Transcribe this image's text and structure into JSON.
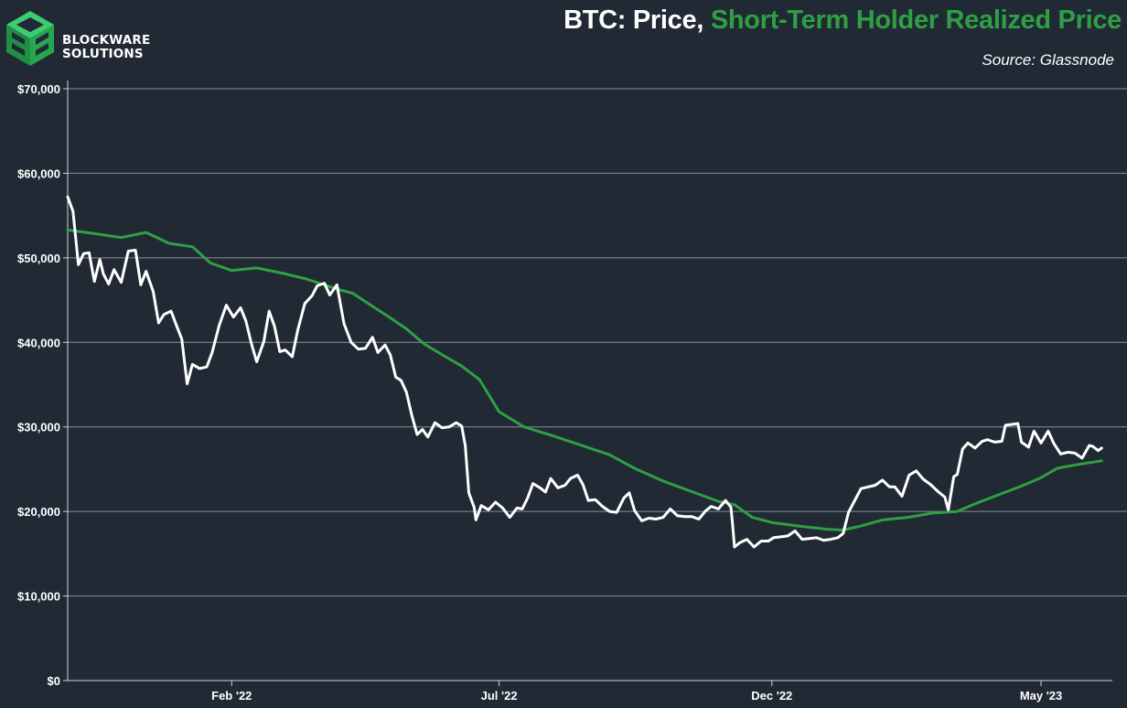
{
  "logo": {
    "line1": "BLOCKWARE",
    "line2": "SOLUTIONS"
  },
  "header": {
    "title_main": "BTC: Price, ",
    "title_accent": "Short-Term Holder Realized Price",
    "source": "Source: Glassnode"
  },
  "colors": {
    "background": "#212935",
    "price": "#ffffff",
    "sth": "#2ea043",
    "grid": "#8a8f97"
  },
  "chart_data": {
    "type": "line",
    "title": "BTC: Price, Short-Term Holder Realized Price",
    "x_range": [
      "2021-11-01",
      "2023-06-10"
    ],
    "ylim": [
      0,
      70000
    ],
    "y_ticks": [
      0,
      10000,
      20000,
      30000,
      40000,
      50000,
      60000,
      70000
    ],
    "y_tick_labels": [
      "$0",
      "$10,000",
      "$20,000",
      "$30,000",
      "$40,000",
      "$50,000",
      "$60,000",
      "$70,000"
    ],
    "x_ticks": [
      {
        "label": "Feb '22",
        "date": "2022-02-01"
      },
      {
        "label": "Jul '22",
        "date": "2022-07-01"
      },
      {
        "label": "Dec '22",
        "date": "2022-12-01"
      },
      {
        "label": "May '23",
        "date": "2023-05-01"
      }
    ],
    "grid": "horizontal",
    "series": [
      {
        "name": "Price",
        "color": "#ffffff",
        "points": [
          [
            "2021-11-01",
            57200
          ],
          [
            "2021-11-04",
            55500
          ],
          [
            "2021-11-07",
            49200
          ],
          [
            "2021-11-10",
            50500
          ],
          [
            "2021-11-13",
            50600
          ],
          [
            "2021-11-16",
            47200
          ],
          [
            "2021-11-19",
            49800
          ],
          [
            "2021-11-21",
            48100
          ],
          [
            "2021-11-24",
            46900
          ],
          [
            "2021-11-27",
            48600
          ],
          [
            "2021-12-01",
            47100
          ],
          [
            "2021-12-05",
            50800
          ],
          [
            "2021-12-09",
            50900
          ],
          [
            "2021-12-12",
            46800
          ],
          [
            "2021-12-15",
            48400
          ],
          [
            "2021-12-19",
            46000
          ],
          [
            "2021-12-22",
            42300
          ],
          [
            "2021-12-25",
            43300
          ],
          [
            "2021-12-29",
            43700
          ],
          [
            "2022-01-01",
            42000
          ],
          [
            "2022-01-04",
            40400
          ],
          [
            "2022-01-07",
            35100
          ],
          [
            "2022-01-10",
            37400
          ],
          [
            "2022-01-14",
            36900
          ],
          [
            "2022-01-18",
            37100
          ],
          [
            "2022-01-21",
            38800
          ],
          [
            "2022-01-25",
            42000
          ],
          [
            "2022-01-29",
            44400
          ],
          [
            "2022-02-02",
            43000
          ],
          [
            "2022-02-06",
            44100
          ],
          [
            "2022-02-09",
            42500
          ],
          [
            "2022-02-12",
            39900
          ],
          [
            "2022-02-15",
            37700
          ],
          [
            "2022-02-19",
            40100
          ],
          [
            "2022-02-22",
            43700
          ],
          [
            "2022-02-25",
            41900
          ],
          [
            "2022-02-28",
            38900
          ],
          [
            "2022-03-03",
            39100
          ],
          [
            "2022-03-07",
            38300
          ],
          [
            "2022-03-10",
            41400
          ],
          [
            "2022-03-14",
            44600
          ],
          [
            "2022-03-18",
            45500
          ],
          [
            "2022-03-21",
            46700
          ],
          [
            "2022-03-25",
            47000
          ],
          [
            "2022-03-28",
            45600
          ],
          [
            "2022-04-01",
            46800
          ],
          [
            "2022-04-05",
            42200
          ],
          [
            "2022-04-09",
            40000
          ],
          [
            "2022-04-13",
            39200
          ],
          [
            "2022-04-17",
            39300
          ],
          [
            "2022-04-21",
            40600
          ],
          [
            "2022-04-24",
            38800
          ],
          [
            "2022-04-28",
            39700
          ],
          [
            "2022-05-01",
            38500
          ],
          [
            "2022-05-04",
            35900
          ],
          [
            "2022-05-07",
            35500
          ],
          [
            "2022-05-10",
            34100
          ],
          [
            "2022-05-13",
            31400
          ],
          [
            "2022-05-16",
            29100
          ],
          [
            "2022-05-19",
            29700
          ],
          [
            "2022-05-22",
            28800
          ],
          [
            "2022-05-26",
            30500
          ],
          [
            "2022-05-30",
            29900
          ],
          [
            "2022-06-03",
            30000
          ],
          [
            "2022-06-07",
            30500
          ],
          [
            "2022-06-10",
            30100
          ],
          [
            "2022-06-12",
            27800
          ],
          [
            "2022-06-14",
            22200
          ],
          [
            "2022-06-17",
            20500
          ],
          [
            "2022-06-18",
            19000
          ],
          [
            "2022-06-21",
            20700
          ],
          [
            "2022-06-25",
            20200
          ],
          [
            "2022-06-29",
            21100
          ],
          [
            "2022-07-03",
            20400
          ],
          [
            "2022-07-07",
            19300
          ],
          [
            "2022-07-11",
            20400
          ],
          [
            "2022-07-14",
            20300
          ],
          [
            "2022-07-17",
            21600
          ],
          [
            "2022-07-20",
            23300
          ],
          [
            "2022-07-24",
            22800
          ],
          [
            "2022-07-27",
            22300
          ],
          [
            "2022-07-30",
            23900
          ],
          [
            "2022-08-03",
            22800
          ],
          [
            "2022-08-07",
            23100
          ],
          [
            "2022-08-10",
            23900
          ],
          [
            "2022-08-14",
            24300
          ],
          [
            "2022-08-17",
            23200
          ],
          [
            "2022-08-20",
            21300
          ],
          [
            "2022-08-24",
            21400
          ],
          [
            "2022-08-28",
            20600
          ],
          [
            "2022-09-01",
            20000
          ],
          [
            "2022-09-05",
            19900
          ],
          [
            "2022-09-09",
            21600
          ],
          [
            "2022-09-12",
            22200
          ],
          [
            "2022-09-15",
            20100
          ],
          [
            "2022-09-19",
            18900
          ],
          [
            "2022-09-23",
            19200
          ],
          [
            "2022-09-27",
            19100
          ],
          [
            "2022-10-01",
            19300
          ],
          [
            "2022-10-05",
            20300
          ],
          [
            "2022-10-09",
            19500
          ],
          [
            "2022-10-13",
            19400
          ],
          [
            "2022-10-17",
            19400
          ],
          [
            "2022-10-21",
            19100
          ],
          [
            "2022-10-25",
            20100
          ],
          [
            "2022-10-28",
            20600
          ],
          [
            "2022-11-01",
            20300
          ],
          [
            "2022-11-05",
            21300
          ],
          [
            "2022-11-08",
            20500
          ],
          [
            "2022-11-09",
            18400
          ],
          [
            "2022-11-10",
            15800
          ],
          [
            "2022-11-13",
            16300
          ],
          [
            "2022-11-17",
            16700
          ],
          [
            "2022-11-21",
            15800
          ],
          [
            "2022-11-25",
            16500
          ],
          [
            "2022-11-29",
            16500
          ],
          [
            "2022-12-02",
            16900
          ],
          [
            "2022-12-06",
            17000
          ],
          [
            "2022-12-10",
            17100
          ],
          [
            "2022-12-14",
            17700
          ],
          [
            "2022-12-18",
            16700
          ],
          [
            "2022-12-22",
            16800
          ],
          [
            "2022-12-26",
            16900
          ],
          [
            "2022-12-30",
            16600
          ],
          [
            "2023-01-03",
            16700
          ],
          [
            "2023-01-07",
            16900
          ],
          [
            "2023-01-10",
            17400
          ],
          [
            "2023-01-13",
            19900
          ],
          [
            "2023-01-16",
            21100
          ],
          [
            "2023-01-20",
            22700
          ],
          [
            "2023-01-24",
            22900
          ],
          [
            "2023-01-28",
            23100
          ],
          [
            "2023-02-01",
            23700
          ],
          [
            "2023-02-05",
            22900
          ],
          [
            "2023-02-08",
            22900
          ],
          [
            "2023-02-12",
            21800
          ],
          [
            "2023-02-16",
            24300
          ],
          [
            "2023-02-20",
            24800
          ],
          [
            "2023-02-24",
            23800
          ],
          [
            "2023-02-28",
            23200
          ],
          [
            "2023-03-04",
            22400
          ],
          [
            "2023-03-08",
            21700
          ],
          [
            "2023-03-10",
            20200
          ],
          [
            "2023-03-13",
            24100
          ],
          [
            "2023-03-15",
            24400
          ],
          [
            "2023-03-18",
            27400
          ],
          [
            "2023-03-21",
            28100
          ],
          [
            "2023-03-25",
            27500
          ],
          [
            "2023-03-29",
            28300
          ],
          [
            "2023-04-01",
            28500
          ],
          [
            "2023-04-05",
            28200
          ],
          [
            "2023-04-09",
            28300
          ],
          [
            "2023-04-11",
            30200
          ],
          [
            "2023-04-15",
            30300
          ],
          [
            "2023-04-18",
            30400
          ],
          [
            "2023-04-20",
            28200
          ],
          [
            "2023-04-24",
            27600
          ],
          [
            "2023-04-27",
            29500
          ],
          [
            "2023-05-01",
            28100
          ],
          [
            "2023-05-05",
            29500
          ],
          [
            "2023-05-08",
            28100
          ],
          [
            "2023-05-12",
            26800
          ],
          [
            "2023-05-16",
            27000
          ],
          [
            "2023-05-20",
            26900
          ],
          [
            "2023-05-24",
            26300
          ],
          [
            "2023-05-28",
            27800
          ],
          [
            "2023-05-30",
            27700
          ],
          [
            "2023-06-02",
            27200
          ],
          [
            "2023-06-04",
            27500
          ]
        ]
      },
      {
        "name": "Short-Term Holder Realized Price",
        "color": "#2ea043",
        "points": [
          [
            "2021-11-01",
            53300
          ],
          [
            "2021-11-15",
            52900
          ],
          [
            "2021-12-01",
            52400
          ],
          [
            "2021-12-15",
            53000
          ],
          [
            "2021-12-28",
            51700
          ],
          [
            "2022-01-10",
            51300
          ],
          [
            "2022-01-20",
            49400
          ],
          [
            "2022-02-01",
            48500
          ],
          [
            "2022-02-15",
            48800
          ],
          [
            "2022-03-01",
            48200
          ],
          [
            "2022-03-15",
            47500
          ],
          [
            "2022-04-01",
            46300
          ],
          [
            "2022-04-10",
            45800
          ],
          [
            "2022-04-20",
            44400
          ],
          [
            "2022-05-01",
            42900
          ],
          [
            "2022-05-10",
            41600
          ],
          [
            "2022-05-20",
            39800
          ],
          [
            "2022-06-01",
            38300
          ],
          [
            "2022-06-10",
            37200
          ],
          [
            "2022-06-20",
            35600
          ],
          [
            "2022-07-01",
            31800
          ],
          [
            "2022-07-15",
            30000
          ],
          [
            "2022-08-01",
            28900
          ],
          [
            "2022-08-15",
            27900
          ],
          [
            "2022-09-01",
            26700
          ],
          [
            "2022-09-15",
            25100
          ],
          [
            "2022-10-01",
            23600
          ],
          [
            "2022-10-15",
            22500
          ],
          [
            "2022-11-01",
            21200
          ],
          [
            "2022-11-10",
            20800
          ],
          [
            "2022-11-20",
            19300
          ],
          [
            "2022-12-01",
            18700
          ],
          [
            "2022-12-15",
            18300
          ],
          [
            "2023-01-01",
            17900
          ],
          [
            "2023-01-10",
            17800
          ],
          [
            "2023-01-20",
            18300
          ],
          [
            "2023-02-01",
            19000
          ],
          [
            "2023-02-15",
            19300
          ],
          [
            "2023-03-01",
            19800
          ],
          [
            "2023-03-15",
            20000
          ],
          [
            "2023-03-25",
            20900
          ],
          [
            "2023-04-05",
            21800
          ],
          [
            "2023-04-20",
            23000
          ],
          [
            "2023-05-01",
            24000
          ],
          [
            "2023-05-10",
            25100
          ],
          [
            "2023-05-20",
            25500
          ],
          [
            "2023-06-04",
            26000
          ]
        ]
      }
    ]
  }
}
